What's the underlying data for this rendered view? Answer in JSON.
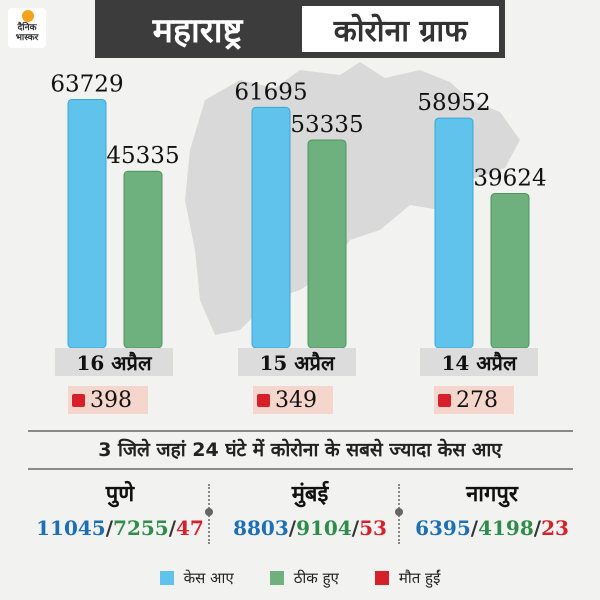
{
  "header": {
    "logo_text": "दैनिक भास्कर",
    "state": "महाराष्ट्र",
    "title": "कोरोना ग्राफ"
  },
  "colors": {
    "cases": "#5fc3ec",
    "recovered": "#6fb07f",
    "deaths": "#d8202a"
  },
  "chart_data": {
    "type": "bar",
    "categories": [
      "16 अप्रैल",
      "15 अप्रैल",
      "14 अप्रैल"
    ],
    "series": [
      {
        "name": "केस आए",
        "values": [
          63729,
          61695,
          58952
        ]
      },
      {
        "name": "ठीक हुए",
        "values": [
          45335,
          53335,
          39624
        ]
      }
    ],
    "deaths": [
      398,
      349,
      278
    ],
    "ylim": [
      0,
      70000
    ],
    "legend": [
      "केस आए",
      "ठीक हुए",
      "मौत हुईं"
    ],
    "legend_position": "bottom"
  },
  "subtitle": "3 जिले जहां 24 घंटे में कोरोना के सबसे ज्यादा केस आए",
  "districts": [
    {
      "name": "पुणे",
      "cases": "11045",
      "recovered": "7255",
      "deaths": "47"
    },
    {
      "name": "मुंबई",
      "cases": "8803",
      "recovered": "9104",
      "deaths": "53"
    },
    {
      "name": "नागपुर",
      "cases": "6395",
      "recovered": "4198",
      "deaths": "23"
    }
  ],
  "separator": "/"
}
